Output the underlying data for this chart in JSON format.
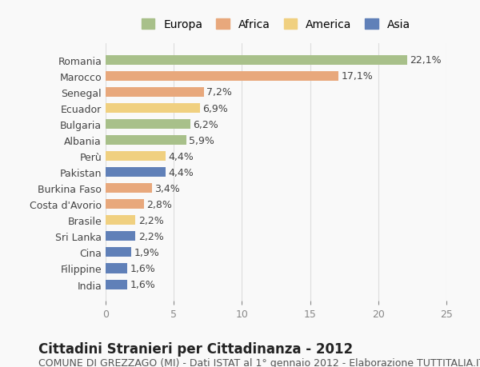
{
  "countries": [
    "Romania",
    "Marocco",
    "Senegal",
    "Ecuador",
    "Bulgaria",
    "Albania",
    "Perù",
    "Pakistan",
    "Burkina Faso",
    "Costa d'Avorio",
    "Brasile",
    "Sri Lanka",
    "Cina",
    "Filippine",
    "India"
  ],
  "values": [
    22.1,
    17.1,
    7.2,
    6.9,
    6.2,
    5.9,
    4.4,
    4.4,
    3.4,
    2.8,
    2.2,
    2.2,
    1.9,
    1.6,
    1.6
  ],
  "continents": [
    "Europa",
    "Africa",
    "Africa",
    "America",
    "Europa",
    "Europa",
    "America",
    "Asia",
    "Africa",
    "Africa",
    "America",
    "Asia",
    "Asia",
    "Asia",
    "Asia"
  ],
  "continent_colors": {
    "Europa": "#a8c08a",
    "Africa": "#e8a87c",
    "America": "#f0d080",
    "Asia": "#6080b8"
  },
  "legend_order": [
    "Europa",
    "Africa",
    "America",
    "Asia"
  ],
  "xlim": [
    0,
    25
  ],
  "xticks": [
    0,
    5,
    10,
    15,
    20,
    25
  ],
  "title": "Cittadini Stranieri per Cittadinanza - 2012",
  "subtitle": "COMUNE DI GREZZAGO (MI) - Dati ISTAT al 1° gennaio 2012 - Elaborazione TUTTITALIA.IT",
  "background_color": "#f9f9f9",
  "bar_height": 0.6,
  "grid_color": "#dddddd",
  "title_fontsize": 12,
  "subtitle_fontsize": 9,
  "label_fontsize": 9,
  "tick_fontsize": 9,
  "value_fontsize": 9
}
